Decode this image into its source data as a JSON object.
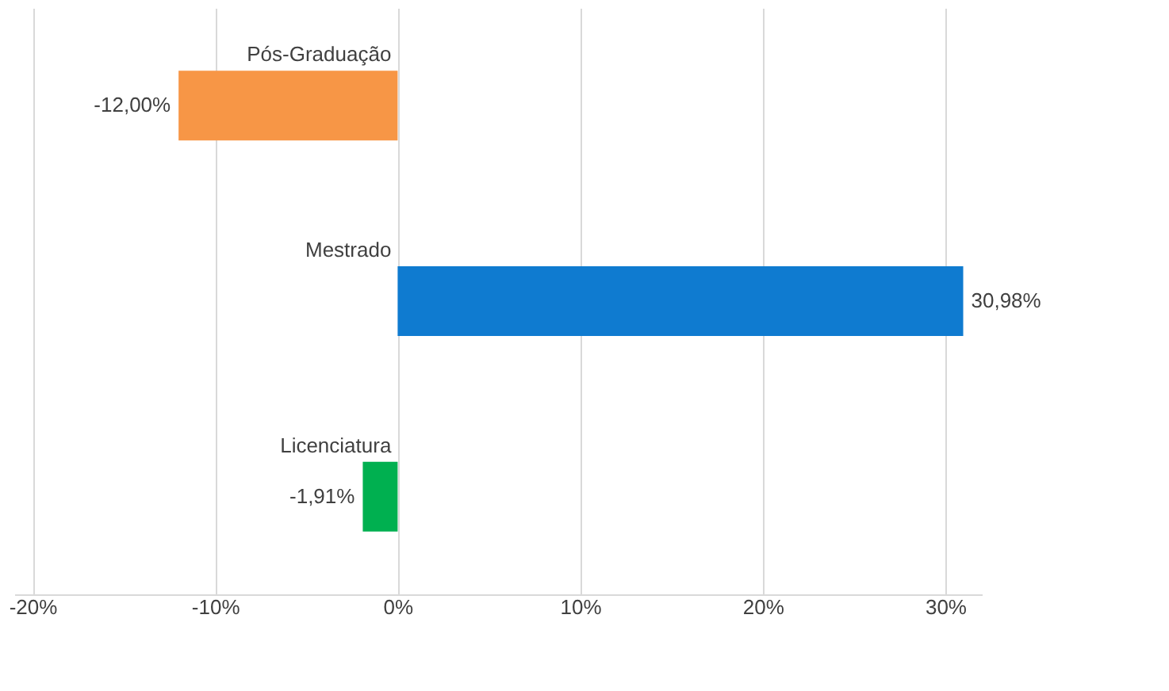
{
  "chart_data": {
    "type": "bar",
    "orientation": "horizontal",
    "categories": [
      "Pós-Graduação",
      "Mestrado",
      "Licenciatura"
    ],
    "values": [
      -12.0,
      30.98,
      -1.91
    ],
    "colors": [
      "#f79646",
      "#0f7bd0",
      "#00b050"
    ],
    "value_labels": [
      "-12,00%",
      "30,98%",
      "-1,91%"
    ],
    "xlim": [
      -21,
      32
    ],
    "xticks": [
      {
        "value": -20,
        "label": "-20%"
      },
      {
        "value": -10,
        "label": "-10%"
      },
      {
        "value": 0,
        "label": "0%"
      },
      {
        "value": 10,
        "label": "10%"
      },
      {
        "value": 20,
        "label": "20%"
      },
      {
        "value": 30,
        "label": "30%"
      }
    ],
    "grid": "x",
    "legend": false
  }
}
